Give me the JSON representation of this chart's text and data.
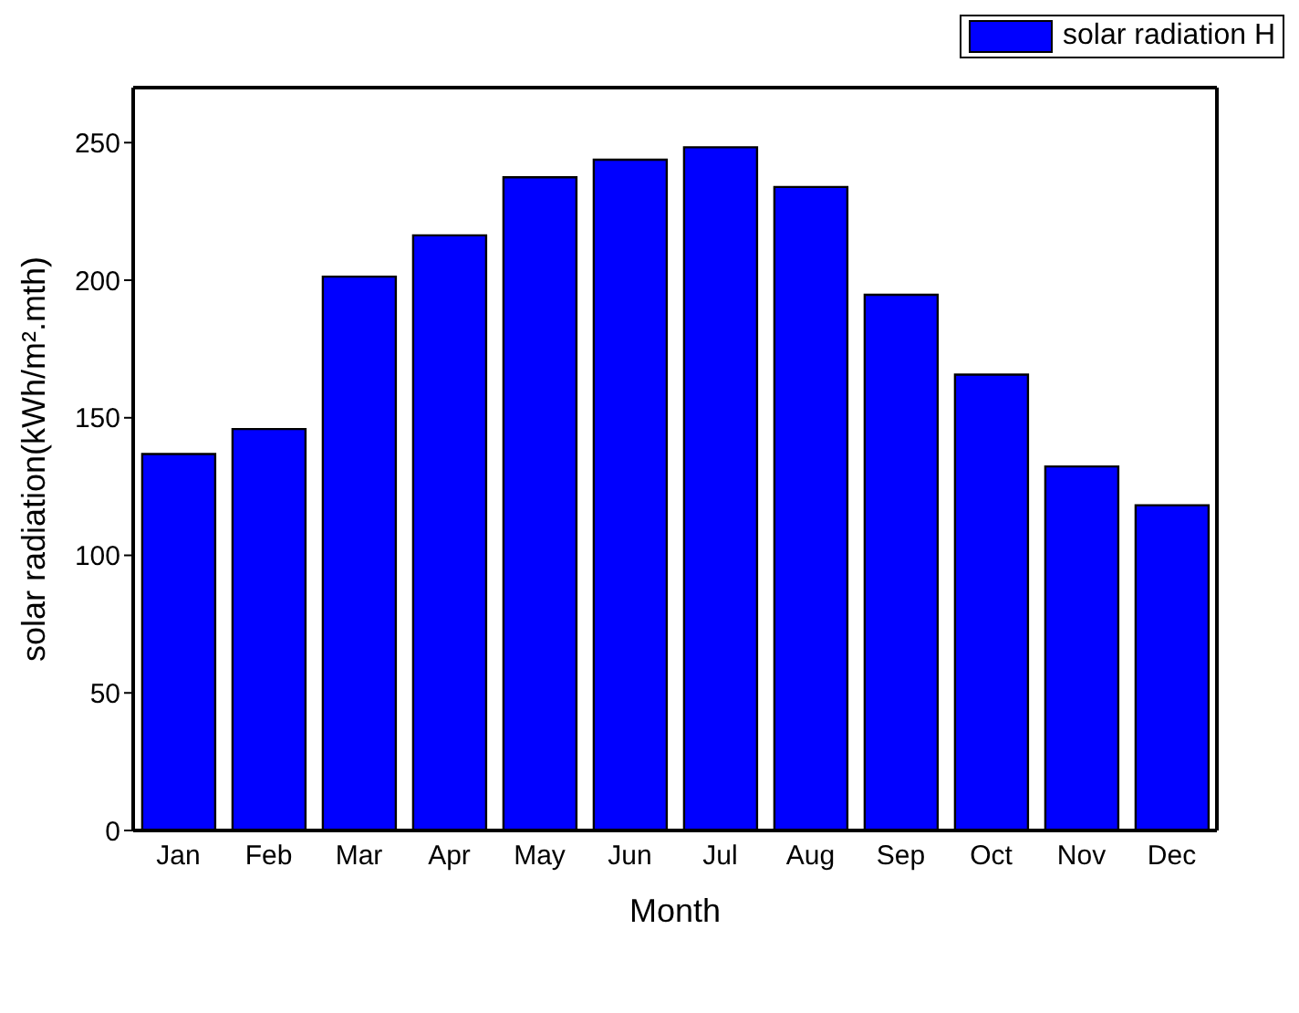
{
  "chart_data": {
    "type": "bar",
    "xlabel": "Month",
    "ylabel": "solar radiation(kWh/m².mth)",
    "categories": [
      "Jan",
      "Feb",
      "Mar",
      "Apr",
      "May",
      "Jun",
      "Jul",
      "Aug",
      "Sep",
      "Oct",
      "Nov",
      "Dec"
    ],
    "series": [
      {
        "name": "solar radiation H",
        "color": "#0000ff",
        "values": [
          136.8,
          145.9,
          201.3,
          216.3,
          237.4,
          243.8,
          248.3,
          233.9,
          194.7,
          165.7,
          132.3,
          118.2
        ]
      }
    ],
    "ylim": [
      0,
      270
    ],
    "yticks": [
      0,
      50,
      100,
      150,
      200,
      250
    ],
    "grid": false,
    "legend": "top right"
  }
}
